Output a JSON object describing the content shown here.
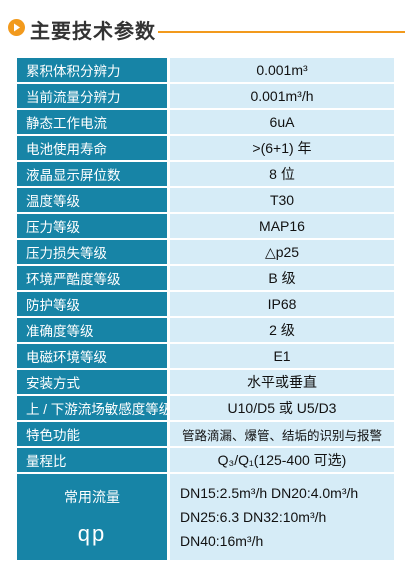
{
  "header": {
    "title": "主要技术参数",
    "accent_color": "#f29a1d",
    "icon": "play-triangle-icon"
  },
  "table": {
    "label_bg": "#1784a6",
    "value_bg": "#d6ecf7",
    "rows": [
      {
        "label": "累积体积分辨力",
        "value": "0.001m³"
      },
      {
        "label": "当前流量分辨力",
        "value": "0.001m³/h"
      },
      {
        "label": "静态工作电流",
        "value": "6uA"
      },
      {
        "label": "电池使用寿命",
        "value": ">(6+1) 年"
      },
      {
        "label": "液晶显示屏位数",
        "value": "8 位"
      },
      {
        "label": "温度等级",
        "value": "T30"
      },
      {
        "label": "压力等级",
        "value": "MAP16"
      },
      {
        "label": "压力损失等级",
        "value": "△p25"
      },
      {
        "label": "环境严酷度等级",
        "value": "B 级"
      },
      {
        "label": "防护等级",
        "value": "IP68"
      },
      {
        "label": "准确度等级",
        "value": "2 级"
      },
      {
        "label": "电磁环境等级",
        "value": "E1"
      },
      {
        "label": "安装方式",
        "value": "水平或垂直"
      },
      {
        "label": "上 / 下游流场敏感度等级",
        "value": "U10/D5 或 U5/D3"
      },
      {
        "label": "特色功能",
        "value": "管路滴漏、爆管、结垢的识别与报警"
      },
      {
        "label": "量程比",
        "value": "Q₃/Q₁(125-400 可选)"
      }
    ],
    "flow": {
      "label": "常用流量",
      "symbol": "qp",
      "lines": [
        "DN15:2.5m³/h  DN20:4.0m³/h",
        "DN25:6.3 DN32:10m³/h",
        "DN40:16m³/h"
      ]
    }
  }
}
